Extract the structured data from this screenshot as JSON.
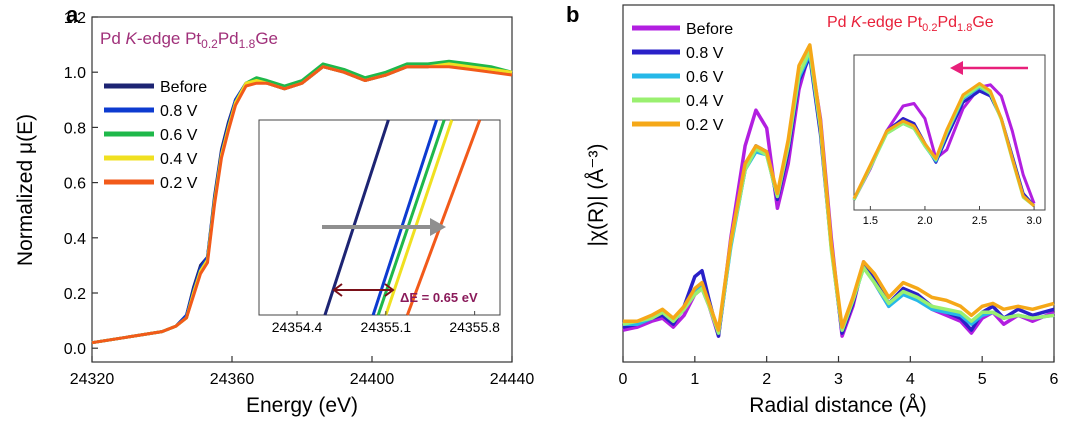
{
  "panels": {
    "a": {
      "letter": "a",
      "title": {
        "pre": "Pd ",
        "k": "K",
        "mid": "-edge Pt",
        "sub1": "0.2",
        "mid2": "Pd",
        "sub2": "1.8",
        "post": "Ge"
      },
      "title_color": "#a0307a",
      "xlabel": "Energy (eV)",
      "ylabel": "Normalized μ(E)",
      "xlim": [
        24320,
        24440
      ],
      "ylim": [
        -0.05,
        1.2
      ],
      "xticks": [
        "24320",
        "24360",
        "24400",
        "24440"
      ],
      "yticks": [
        "0.0",
        "0.2",
        "0.4",
        "0.6",
        "0.8",
        "1.0",
        "1.2"
      ],
      "legend": [
        "Before",
        "0.8 V",
        "0.6 V",
        "0.4 V",
        "0.2 V"
      ],
      "inset": {
        "xlim": [
          24354.1,
          24356.0
        ],
        "ylim": [
          0,
          1
        ],
        "xticks": [
          "24354.4",
          "24355.1",
          "24355.8"
        ],
        "annotation": "ΔE = 0.65 eV",
        "annotation_color": "#8a1a5a",
        "lines": [
          {
            "x": [
              24354.62,
              24355.12
            ],
            "y": [
              0,
              1
            ]
          },
          {
            "x": [
              24355.0,
              24355.5
            ],
            "y": [
              0,
              1
            ]
          },
          {
            "x": [
              24355.04,
              24355.56
            ],
            "y": [
              0,
              1
            ]
          },
          {
            "x": [
              24355.1,
              24355.62
            ],
            "y": [
              0,
              1
            ]
          },
          {
            "x": [
              24355.27,
              24355.84
            ],
            "y": [
              0,
              1
            ]
          }
        ]
      }
    },
    "b": {
      "letter": "b",
      "title": {
        "pre": "Pd ",
        "k": "K",
        "mid": "-edge Pt",
        "sub1": "0.2",
        "mid2": "Pd",
        "sub2": "1.8",
        "post": "Ge"
      },
      "title_color": "#e8203a",
      "xlabel": "Radial distance (Å)",
      "ylabel": "|χ(R)| (Å⁻³)",
      "xlim": [
        0,
        6
      ],
      "ylim": [
        0,
        1.05
      ],
      "xticks": [
        "0",
        "1",
        "2",
        "3",
        "4",
        "5",
        "6"
      ],
      "legend": [
        "Before",
        "0.8 V",
        "0.6 V",
        "0.4 V",
        "0.2 V"
      ],
      "inset": {
        "xlim": [
          1.35,
          3.1
        ],
        "ylim": [
          0,
          1
        ],
        "xticks": [
          "1.5",
          "2.0",
          "2.5",
          "3.0"
        ],
        "arrow_color": "#e8207a"
      }
    }
  },
  "series_colors": [
    "#1d2473",
    "#0d3bd0",
    "#1fb84a",
    "#f0e020",
    "#f25a1a"
  ],
  "series_colors_b": [
    "#b21fe0",
    "#2a20c8",
    "#26b8e8",
    "#9af070",
    "#f5a818"
  ],
  "chart_data": [
    {
      "type": "line",
      "title": "Pd K-edge Pt0.2Pd1.8Ge",
      "xlabel": "Energy (eV)",
      "ylabel": "Normalized μ(E)",
      "xlim": [
        24320,
        24440
      ],
      "ylim": [
        -0.05,
        1.2
      ],
      "x": [
        24320,
        24330,
        24340,
        24344,
        24347,
        24349,
        24351,
        24353,
        24355,
        24357,
        24359,
        24361,
        24364,
        24367,
        24370,
        24375,
        24380,
        24386,
        24392,
        24398,
        24404,
        24410,
        24416,
        24422,
        24428,
        24434,
        24440
      ],
      "series": [
        {
          "name": "Before",
          "values": [
            0.02,
            0.04,
            0.06,
            0.08,
            0.12,
            0.22,
            0.3,
            0.33,
            0.55,
            0.72,
            0.82,
            0.9,
            0.96,
            0.97,
            0.96,
            0.94,
            0.96,
            1.02,
            1.0,
            0.97,
            0.99,
            1.02,
            1.02,
            1.03,
            1.02,
            1.01,
            1.0
          ]
        },
        {
          "name": "0.8 V",
          "values": [
            0.02,
            0.04,
            0.06,
            0.08,
            0.12,
            0.21,
            0.29,
            0.33,
            0.54,
            0.71,
            0.81,
            0.9,
            0.96,
            0.97,
            0.96,
            0.94,
            0.96,
            1.02,
            1.0,
            0.97,
            0.99,
            1.02,
            1.02,
            1.03,
            1.02,
            1.01,
            1.0
          ]
        },
        {
          "name": "0.6 V",
          "values": [
            0.02,
            0.04,
            0.06,
            0.08,
            0.11,
            0.2,
            0.28,
            0.32,
            0.53,
            0.7,
            0.8,
            0.89,
            0.96,
            0.98,
            0.97,
            0.95,
            0.97,
            1.03,
            1.01,
            0.98,
            1.0,
            1.03,
            1.03,
            1.04,
            1.03,
            1.02,
            1.0
          ]
        },
        {
          "name": "0.4 V",
          "values": [
            0.02,
            0.04,
            0.06,
            0.08,
            0.11,
            0.2,
            0.28,
            0.32,
            0.53,
            0.7,
            0.8,
            0.89,
            0.96,
            0.97,
            0.96,
            0.94,
            0.96,
            1.02,
            1.0,
            0.97,
            0.99,
            1.02,
            1.02,
            1.03,
            1.02,
            1.01,
            1.0
          ]
        },
        {
          "name": "0.2 V",
          "values": [
            0.02,
            0.04,
            0.06,
            0.08,
            0.11,
            0.19,
            0.27,
            0.31,
            0.52,
            0.69,
            0.79,
            0.88,
            0.95,
            0.96,
            0.96,
            0.94,
            0.96,
            1.02,
            1.0,
            0.97,
            0.99,
            1.02,
            1.02,
            1.02,
            1.01,
            1.0,
            0.99
          ]
        }
      ]
    },
    {
      "type": "line",
      "title": "Pd K-edge Pt0.2Pd1.8Ge",
      "xlabel": "Radial distance (Å)",
      "ylabel": "|χ(R)| (Å⁻³)",
      "xlim": [
        0,
        6
      ],
      "x": [
        0.0,
        0.2,
        0.4,
        0.55,
        0.7,
        0.85,
        1.0,
        1.1,
        1.2,
        1.33,
        1.5,
        1.7,
        1.85,
        2.0,
        2.15,
        2.3,
        2.45,
        2.6,
        2.75,
        2.9,
        3.05,
        3.2,
        3.35,
        3.5,
        3.7,
        3.9,
        4.1,
        4.3,
        4.5,
        4.7,
        4.85,
        5.0,
        5.15,
        5.3,
        5.5,
        5.7,
        6.0
      ],
      "series": [
        {
          "name": "Before",
          "values": [
            0.04,
            0.05,
            0.07,
            0.08,
            0.05,
            0.09,
            0.16,
            0.18,
            0.12,
            0.02,
            0.35,
            0.66,
            0.78,
            0.72,
            0.45,
            0.6,
            0.85,
            0.98,
            0.75,
            0.35,
            0.02,
            0.12,
            0.27,
            0.2,
            0.12,
            0.18,
            0.15,
            0.11,
            0.09,
            0.07,
            0.03,
            0.08,
            0.1,
            0.06,
            0.09,
            0.07,
            0.1
          ]
        },
        {
          "name": "0.8 V",
          "values": [
            0.05,
            0.06,
            0.08,
            0.09,
            0.06,
            0.12,
            0.22,
            0.24,
            0.14,
            0.02,
            0.33,
            0.58,
            0.66,
            0.64,
            0.48,
            0.64,
            0.88,
            0.96,
            0.7,
            0.32,
            0.03,
            0.13,
            0.26,
            0.21,
            0.13,
            0.18,
            0.16,
            0.12,
            0.1,
            0.08,
            0.04,
            0.1,
            0.12,
            0.08,
            0.11,
            0.09,
            0.11
          ]
        },
        {
          "name": "0.6 V",
          "values": [
            0.06,
            0.06,
            0.08,
            0.1,
            0.07,
            0.11,
            0.17,
            0.19,
            0.13,
            0.03,
            0.32,
            0.58,
            0.64,
            0.63,
            0.49,
            0.66,
            0.89,
            0.97,
            0.72,
            0.32,
            0.04,
            0.14,
            0.25,
            0.2,
            0.12,
            0.16,
            0.14,
            0.11,
            0.1,
            0.09,
            0.06,
            0.09,
            0.1,
            0.08,
            0.09,
            0.08,
            0.09
          ]
        },
        {
          "name": "0.4 V",
          "values": [
            0.06,
            0.07,
            0.08,
            0.1,
            0.07,
            0.11,
            0.16,
            0.18,
            0.12,
            0.03,
            0.33,
            0.58,
            0.65,
            0.63,
            0.49,
            0.66,
            0.9,
            0.98,
            0.72,
            0.31,
            0.04,
            0.14,
            0.25,
            0.2,
            0.13,
            0.17,
            0.15,
            0.12,
            0.11,
            0.1,
            0.07,
            0.1,
            0.1,
            0.08,
            0.09,
            0.08,
            0.09
          ]
        },
        {
          "name": "0.2 V",
          "values": [
            0.07,
            0.07,
            0.09,
            0.11,
            0.08,
            0.12,
            0.18,
            0.2,
            0.13,
            0.04,
            0.34,
            0.6,
            0.66,
            0.64,
            0.5,
            0.68,
            0.93,
            1.0,
            0.74,
            0.33,
            0.05,
            0.15,
            0.27,
            0.23,
            0.15,
            0.2,
            0.18,
            0.15,
            0.14,
            0.12,
            0.09,
            0.12,
            0.13,
            0.11,
            0.12,
            0.11,
            0.13
          ]
        }
      ]
    }
  ],
  "inset_b_data": {
    "x": [
      1.35,
      1.5,
      1.65,
      1.8,
      1.9,
      2.0,
      2.1,
      2.2,
      2.35,
      2.5,
      2.6,
      2.7,
      2.8,
      2.9,
      3.0
    ],
    "series": [
      {
        "name": "Before",
        "values": [
          0.05,
          0.3,
          0.6,
          0.8,
          0.82,
          0.7,
          0.38,
          0.45,
          0.78,
          0.95,
          0.97,
          0.88,
          0.6,
          0.25,
          0.02
        ]
      },
      {
        "name": "0.8 V",
        "values": [
          0.05,
          0.32,
          0.6,
          0.7,
          0.66,
          0.5,
          0.35,
          0.55,
          0.83,
          0.92,
          0.88,
          0.7,
          0.4,
          0.1,
          0.0
        ]
      },
      {
        "name": "0.6 V",
        "values": [
          0.05,
          0.31,
          0.58,
          0.66,
          0.62,
          0.48,
          0.36,
          0.58,
          0.86,
          0.95,
          0.9,
          0.7,
          0.38,
          0.08,
          0.0
        ]
      },
      {
        "name": "0.4 V",
        "values": [
          0.05,
          0.31,
          0.58,
          0.66,
          0.62,
          0.48,
          0.37,
          0.59,
          0.87,
          0.96,
          0.9,
          0.69,
          0.37,
          0.07,
          0.0
        ]
      },
      {
        "name": "0.2 V",
        "values": [
          0.06,
          0.33,
          0.6,
          0.68,
          0.64,
          0.5,
          0.38,
          0.61,
          0.89,
          0.98,
          0.92,
          0.7,
          0.38,
          0.08,
          0.0
        ]
      }
    ]
  }
}
